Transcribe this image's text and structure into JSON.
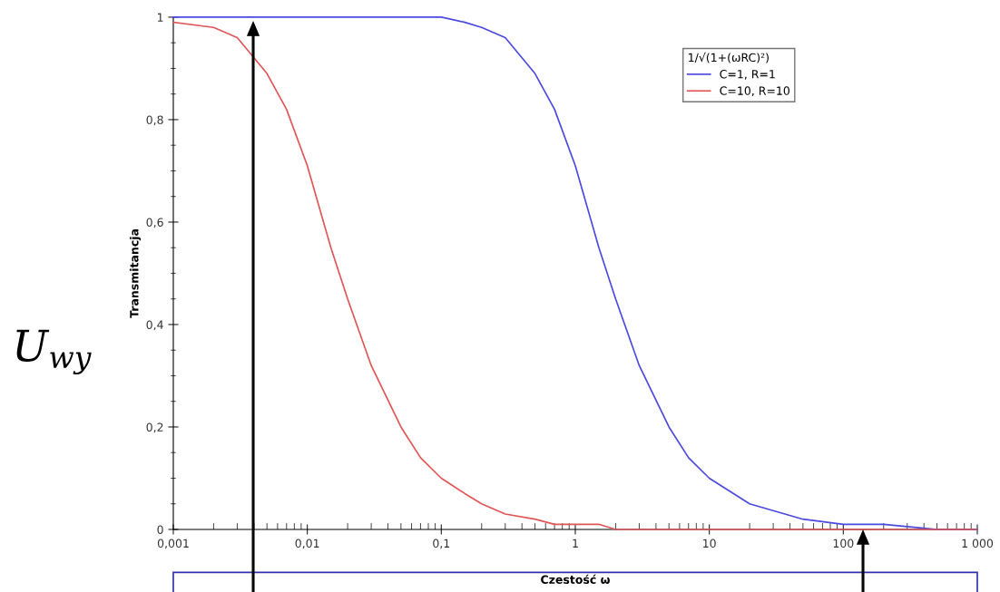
{
  "chart_data": {
    "type": "line",
    "xlabel": "Czestość ω",
    "ylabel": "Transmitancja",
    "legend_title": "1/√(1+(ωRC)²)",
    "annotations": [
      "U$_{wy}$"
    ],
    "x": [
      0.001,
      0.002,
      0.003,
      0.005,
      0.007,
      0.01,
      0.015,
      0.02,
      0.03,
      0.05,
      0.07,
      0.1,
      0.15,
      0.2,
      0.3,
      0.5,
      0.7,
      1,
      1.5,
      2,
      3,
      5,
      7,
      10,
      20,
      50,
      100,
      200,
      500,
      1000
    ],
    "series": [
      {
        "name": "C=1, R=1",
        "color": "#4a4ae0",
        "values": [
          1,
          1,
          1,
          1,
          1,
          1,
          1,
          1,
          1,
          1,
          1,
          1,
          0.99,
          0.98,
          0.96,
          0.89,
          0.82,
          0.71,
          0.55,
          0.45,
          0.32,
          0.2,
          0.14,
          0.1,
          0.05,
          0.02,
          0.01,
          0.01,
          0,
          0
        ]
      },
      {
        "name": "C=10, R=10",
        "color": "#e05555",
        "values": [
          0.99,
          0.98,
          0.96,
          0.89,
          0.82,
          0.71,
          0.55,
          0.45,
          0.32,
          0.2,
          0.14,
          0.1,
          0.07,
          0.05,
          0.03,
          0.02,
          0.01,
          0.01,
          0.01,
          0,
          0,
          0,
          0,
          0,
          0,
          0,
          0,
          0,
          0,
          0
        ]
      }
    ],
    "log": "x",
    "xlim": [
      0.001,
      1000
    ],
    "ylim": [
      0,
      1
    ],
    "xticks": [
      {
        "value": 0.001,
        "label": "0,001"
      },
      {
        "value": 0.01,
        "label": "0,01"
      },
      {
        "value": 0.1,
        "label": "0,1"
      },
      1,
      10,
      100,
      {
        "value": 1000,
        "label": "1 000"
      }
    ],
    "yticks": [
      0,
      {
        "value": 0.2,
        "label": "0,2"
      },
      {
        "value": 0.4,
        "label": "0,4"
      },
      {
        "value": 0.6,
        "label": "0,6"
      },
      {
        "value": 0.8,
        "label": "0,8"
      },
      1
    ],
    "grid": false,
    "legend": "top right",
    "marker": "none",
    "line_style": "solid"
  }
}
